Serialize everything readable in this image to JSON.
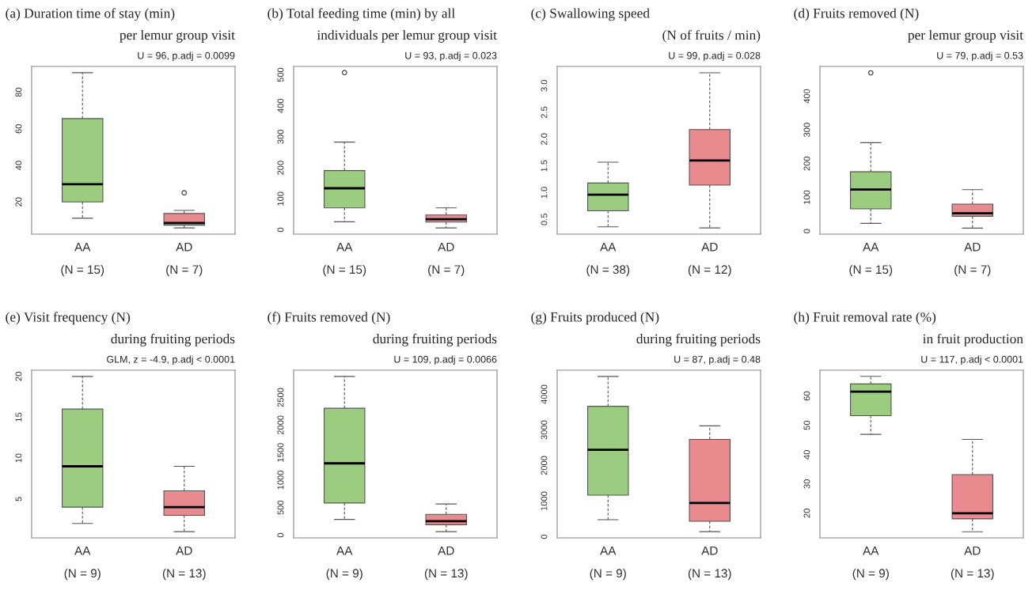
{
  "chart_data": [
    {
      "type": "box",
      "title": "(a) Duration time of stay (min)\nper lemur group visit",
      "subtitle": "U = 96, p.adj = 0.0099",
      "categories": [
        "AA\n\n(N = 15)",
        "AD\n\n(N = 7)"
      ],
      "colors": [
        "#9ccc80",
        "#e98a8e"
      ],
      "ylim": [
        2.4,
        94.1
      ],
      "yticks": [
        20,
        40,
        60,
        80
      ],
      "boxes": [
        {
          "low": 11.1,
          "q1": 20,
          "median": 29.7,
          "q3": 65.6,
          "high": 90.7
        },
        {
          "low": 5.8,
          "q1": 7.3,
          "median": 8.5,
          "q3": 13.7,
          "high": 15.4,
          "outliers": [
            25
          ]
        }
      ]
    },
    {
      "type": "box",
      "title": "(b) Total feeding time (min) by all\nindividuals per lemur group visit",
      "subtitle": "U = 93, p.adj = 0.023",
      "categories": [
        "AA\n\n(N = 15)",
        "AD\n\n(N = 7)"
      ],
      "colors": [
        "#9ccc80",
        "#e98a8e"
      ],
      "ylim": [
        -14,
        527
      ],
      "yticks": [
        0,
        100,
        200,
        300,
        400,
        500
      ],
      "boxes": [
        {
          "low": 26,
          "q1": 71,
          "median": 134,
          "q3": 191,
          "high": 283,
          "outliers": [
            507
          ]
        },
        {
          "low": 6,
          "q1": 25,
          "median": 34,
          "q3": 48,
          "high": 71
        }
      ]
    },
    {
      "type": "box",
      "title": "(c) Swallowing speed\n(N of fruits / min)",
      "subtitle": "U = 99, p.adj = 0.028",
      "categories": [
        "AA\n\n(N = 38)",
        "AD\n\n(N = 12)"
      ],
      "colors": [
        "#9ccc80",
        "#e98a8e"
      ],
      "ylim": [
        0.224,
        3.359
      ],
      "yticks": [
        0.5,
        {
          "value": 1,
          "label": "1.0"
        },
        1.5,
        {
          "value": 2,
          "label": "2.0"
        },
        2.5,
        {
          "value": 3,
          "label": "3.0"
        }
      ],
      "boxes": [
        {
          "low": 0.36,
          "q1": 0.66,
          "median": 0.96,
          "q3": 1.18,
          "high": 1.57
        },
        {
          "low": 0.34,
          "q1": 1.14,
          "median": 1.6,
          "q3": 2.18,
          "high": 3.24
        }
      ]
    },
    {
      "type": "box",
      "title": "(d) Fruits removed (N)\nper lemur group visit",
      "subtitle": "U = 79, p.adj = 0.53",
      "categories": [
        "AA\n\n(N = 15)",
        "AD\n\n(N = 7)"
      ],
      "colors": [
        "#9ccc80",
        "#e98a8e"
      ],
      "ylim": [
        -9,
        488
      ],
      "yticks": [
        0,
        100,
        200,
        300,
        400
      ],
      "boxes": [
        {
          "low": 23,
          "q1": 66,
          "median": 123,
          "q3": 176,
          "high": 262,
          "outliers": [
            469
          ]
        },
        {
          "low": 9,
          "q1": 44,
          "median": 53,
          "q3": 80,
          "high": 123
        }
      ]
    },
    {
      "type": "box",
      "title": "(e) Visit frequency (N)\nduring fruiting periods",
      "subtitle": "GLM, z = -4.9, p.adj < 0.0001",
      "categories": [
        "AA\n\n(N = 9)",
        "AD\n\n(N = 13)"
      ],
      "colors": [
        "#9ccc80",
        "#e98a8e"
      ],
      "ylim": [
        0.24,
        20.76
      ],
      "yticks": [
        5,
        10,
        15,
        20
      ],
      "boxes": [
        {
          "low": 2,
          "q1": 4,
          "median": 9,
          "q3": 16,
          "high": 20
        },
        {
          "low": 1,
          "q1": 3,
          "median": 4,
          "q3": 6,
          "high": 9
        }
      ]
    },
    {
      "type": "box",
      "title": "(f) Fruits removed (N)\nduring fruiting periods",
      "subtitle": "U = 109, p.adj = 0.0066",
      "categories": [
        "AA\n\n(N = 9)",
        "AD\n\n(N = 13)"
      ],
      "colors": [
        "#9ccc80",
        "#e98a8e"
      ],
      "ylim": [
        -50,
        2996
      ],
      "yticks": [
        0,
        500,
        1000,
        1500,
        2000,
        2500
      ],
      "boxes": [
        {
          "low": 286,
          "q1": 584,
          "median": 1304,
          "q3": 2305,
          "high": 2883
        },
        {
          "low": 63,
          "q1": 189,
          "median": 252,
          "q3": 378,
          "high": 566
        }
      ]
    },
    {
      "type": "box",
      "title": "(g) Fruits produced (N)\nduring fruiting periods",
      "subtitle": "U = 87, p.adj = 0.48",
      "categories": [
        "AA\n\n(N = 9)",
        "AD\n\n(N = 13)"
      ],
      "colors": [
        "#9ccc80",
        "#e98a8e"
      ],
      "ylim": [
        -32,
        4678
      ],
      "yticks": [
        0,
        1000,
        2000,
        3000,
        4000
      ],
      "boxes": [
        {
          "low": 478,
          "q1": 1168,
          "median": 2442,
          "q3": 3664,
          "high": 4504
        },
        {
          "low": 142,
          "q1": 434,
          "median": 947,
          "q3": 2735,
          "high": 3115
        }
      ]
    },
    {
      "type": "box",
      "title": "(h) Fruit removal rate (%)\nin fruit production",
      "subtitle": "U = 117, p.adj < 0.0001",
      "categories": [
        "AA\n\n(N = 9)",
        "AD\n\n(N = 13)"
      ],
      "colors": [
        "#9ccc80",
        "#e98a8e"
      ],
      "ylim": [
        11.6,
        68.8
      ],
      "yticks": [
        20,
        30,
        40,
        50,
        60
      ],
      "boxes": [
        {
          "low": 46.9,
          "q1": 53.3,
          "median": 61.5,
          "q3": 64.1,
          "high": 66.7
        },
        {
          "low": 13.7,
          "q1": 18.1,
          "median": 20,
          "q3": 33.2,
          "high": 45.2
        }
      ]
    }
  ]
}
